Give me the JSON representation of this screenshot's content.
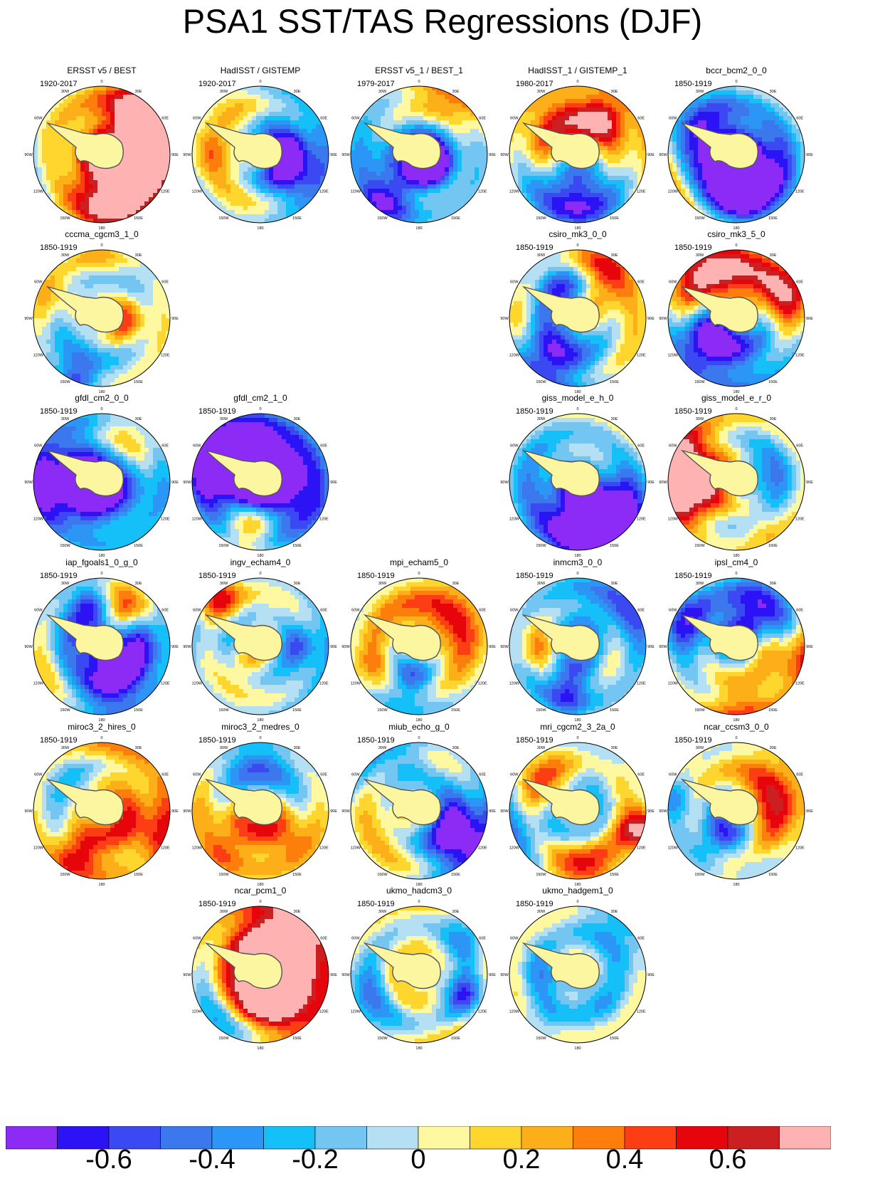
{
  "title": "PSA1 SST/TAS Regressions (DJF)",
  "lon_labels": [
    "0",
    "30E",
    "60E",
    "90E",
    "120E",
    "150E",
    "180",
    "150W",
    "120W",
    "90W",
    "60W",
    "30W"
  ],
  "panels": [
    {
      "name": "ERSST v5 / BEST",
      "period": "1920-2017",
      "row": 0,
      "col": 0
    },
    {
      "name": "HadISST / GISTEMP",
      "period": "1920-2017",
      "row": 0,
      "col": 1
    },
    {
      "name": "ERSST v5_1 / BEST_1",
      "period": "1979-2017",
      "row": 0,
      "col": 2
    },
    {
      "name": "HadISST_1 / GISTEMP_1",
      "period": "1980-2017",
      "row": 0,
      "col": 3
    },
    {
      "name": "bccr_bcm2_0_0",
      "period": "1850-1919",
      "row": 0,
      "col": 4
    },
    {
      "name": "cccma_cgcm3_1_0",
      "period": "1850-1919",
      "row": 1,
      "col": 0
    },
    {
      "name": "csiro_mk3_0_0",
      "period": "1850-1919",
      "row": 1,
      "col": 3
    },
    {
      "name": "csiro_mk3_5_0",
      "period": "1850-1919",
      "row": 1,
      "col": 4
    },
    {
      "name": "gfdl_cm2_0_0",
      "period": "1850-1919",
      "row": 2,
      "col": 0
    },
    {
      "name": "gfdl_cm2_1_0",
      "period": "1850-1919",
      "row": 2,
      "col": 1
    },
    {
      "name": "giss_model_e_h_0",
      "period": "1850-1919",
      "row": 2,
      "col": 3
    },
    {
      "name": "giss_model_e_r_0",
      "period": "1850-1919",
      "row": 2,
      "col": 4
    },
    {
      "name": "iap_fgoals1_0_g_0",
      "period": "1850-1919",
      "row": 3,
      "col": 0
    },
    {
      "name": "ingv_echam4_0",
      "period": "1850-1919",
      "row": 3,
      "col": 1
    },
    {
      "name": "mpi_echam5_0",
      "period": "1850-1919",
      "row": 3,
      "col": 2
    },
    {
      "name": "inmcm3_0_0",
      "period": "1850-1919",
      "row": 3,
      "col": 3
    },
    {
      "name": "ipsl_cm4_0",
      "period": "1850-1919",
      "row": 3,
      "col": 4
    },
    {
      "name": "miroc3_2_hires_0",
      "period": "1850-1919",
      "row": 4,
      "col": 0
    },
    {
      "name": "miroc3_2_medres_0",
      "period": "1850-1919",
      "row": 4,
      "col": 1
    },
    {
      "name": "miub_echo_g_0",
      "period": "1850-1919",
      "row": 4,
      "col": 2
    },
    {
      "name": "mri_cgcm2_3_2a_0",
      "period": "1850-1919",
      "row": 4,
      "col": 3
    },
    {
      "name": "ncar_ccsm3_0_0",
      "period": "1850-1919",
      "row": 4,
      "col": 4
    },
    {
      "name": "ncar_pcm1_0",
      "period": "1850-1919",
      "row": 5,
      "col": 1
    },
    {
      "name": "ukmo_hadcm3_0",
      "period": "1850-1919",
      "row": 5,
      "col": 2
    },
    {
      "name": "ukmo_hadgem1_0",
      "period": "1850-1919",
      "row": 5,
      "col": 3
    }
  ],
  "colorbar": {
    "colors": [
      "#8c2bf5",
      "#2b13f5",
      "#3a49f2",
      "#3b78ee",
      "#2b96f6",
      "#15c0f8",
      "#74c6f2",
      "#b5dff3",
      "#fef8a0",
      "#fed62e",
      "#fdaf1a",
      "#fe7e0b",
      "#fd3d13",
      "#e7050c",
      "#cb1f21",
      "#feb2b2"
    ],
    "tick_labels": [
      "-0.6",
      "-0.4",
      "-0.2",
      "0",
      "0.2",
      "0.4",
      "0.6"
    ]
  }
}
